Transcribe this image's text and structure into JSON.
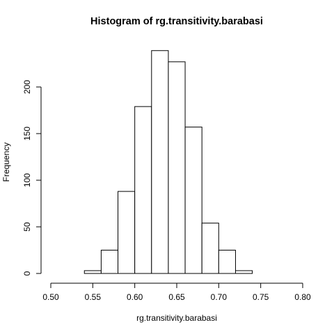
{
  "chart_data": {
    "type": "bar",
    "title": "Histogram of rg.transitivity.barabasi",
    "xlabel": "rg.transitivity.barabasi",
    "ylabel": "Frequency",
    "xlim": [
      0.5,
      0.8
    ],
    "ylim": [
      0,
      240
    ],
    "x_ticks": [
      0.5,
      0.55,
      0.6,
      0.65,
      0.7,
      0.75,
      0.8
    ],
    "x_tick_labels": [
      "0.50",
      "0.55",
      "0.60",
      "0.65",
      "0.70",
      "0.75",
      "0.80"
    ],
    "y_ticks": [
      0,
      50,
      100,
      150,
      200
    ],
    "y_tick_labels": [
      "0",
      "50",
      "100",
      "150",
      "200"
    ],
    "bins": [
      {
        "start": 0.54,
        "end": 0.56,
        "count": 3
      },
      {
        "start": 0.56,
        "end": 0.58,
        "count": 25
      },
      {
        "start": 0.58,
        "end": 0.6,
        "count": 88
      },
      {
        "start": 0.6,
        "end": 0.62,
        "count": 179
      },
      {
        "start": 0.62,
        "end": 0.64,
        "count": 239
      },
      {
        "start": 0.64,
        "end": 0.66,
        "count": 227
      },
      {
        "start": 0.66,
        "end": 0.68,
        "count": 157
      },
      {
        "start": 0.68,
        "end": 0.7,
        "count": 54
      },
      {
        "start": 0.7,
        "end": 0.72,
        "count": 25
      },
      {
        "start": 0.72,
        "end": 0.74,
        "count": 3
      }
    ],
    "grid": false,
    "legend": "none"
  }
}
